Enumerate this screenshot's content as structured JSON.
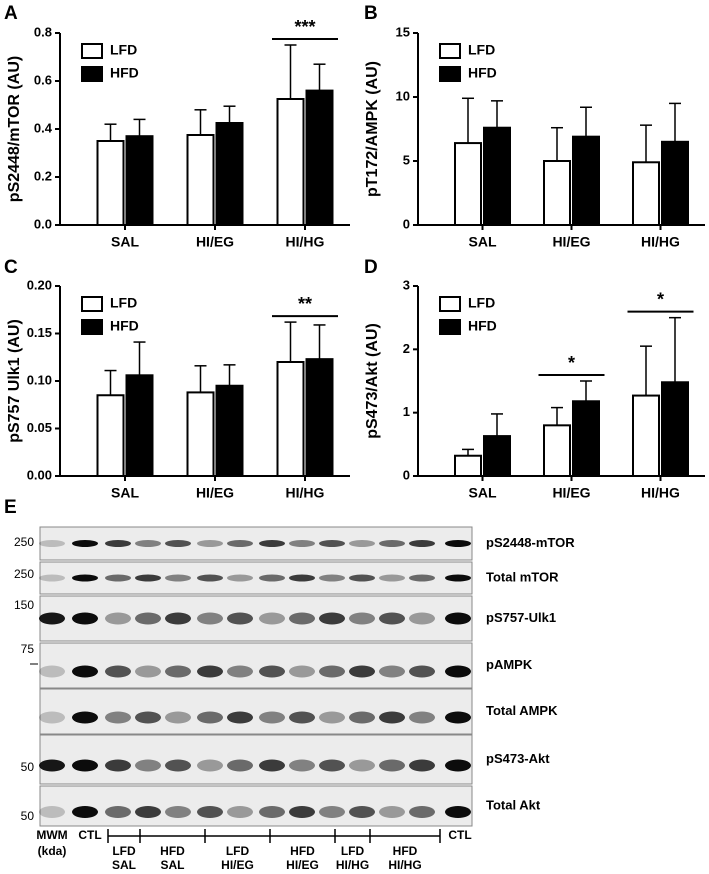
{
  "chart_data": [
    {
      "type": "bar",
      "panel": "A",
      "y_label": "pS2448/mTOR (AU)",
      "categories": [
        "SAL",
        "HI/EG",
        "HI/HG"
      ],
      "series": [
        {
          "name": "LFD",
          "color": "#ffffff",
          "values": [
            0.35,
            0.375,
            0.525
          ],
          "errors": [
            0.07,
            0.105,
            0.225
          ]
        },
        {
          "name": "HFD",
          "color": "#000000",
          "values": [
            0.37,
            0.425,
            0.56
          ],
          "errors": [
            0.07,
            0.07,
            0.11
          ]
        }
      ],
      "ylim": [
        0,
        0.8
      ],
      "yticks": [
        {
          "value": 0,
          "label": "0.0"
        },
        0.2,
        0.4,
        0.6,
        0.8
      ],
      "annotations": [
        {
          "text": "***",
          "category": "HI/HG"
        }
      ]
    },
    {
      "type": "bar",
      "panel": "B",
      "y_label": "pT172/AMPK (AU)",
      "categories": [
        "SAL",
        "HI/EG",
        "HI/HG"
      ],
      "series": [
        {
          "name": "LFD",
          "color": "#ffffff",
          "values": [
            6.4,
            5.0,
            4.9
          ],
          "errors": [
            3.5,
            2.6,
            2.9
          ]
        },
        {
          "name": "HFD",
          "color": "#000000",
          "values": [
            7.6,
            6.9,
            6.5
          ],
          "errors": [
            2.1,
            2.3,
            3.0
          ]
        }
      ],
      "ylim": [
        0,
        15
      ],
      "yticks": [
        0,
        5,
        10,
        15
      ],
      "annotations": []
    },
    {
      "type": "bar",
      "panel": "C",
      "y_label": "pS757 Ulk1 (AU)",
      "categories": [
        "SAL",
        "HI/EG",
        "HI/HG"
      ],
      "series": [
        {
          "name": "LFD",
          "color": "#ffffff",
          "values": [
            0.085,
            0.088,
            0.12
          ],
          "errors": [
            0.026,
            0.028,
            0.042
          ]
        },
        {
          "name": "HFD",
          "color": "#000000",
          "values": [
            0.106,
            0.095,
            0.123
          ],
          "errors": [
            0.035,
            0.022,
            0.036
          ]
        }
      ],
      "ylim": [
        0,
        0.2
      ],
      "yticks": [
        {
          "value": 0,
          "label": "0.00"
        },
        {
          "value": 0.05,
          "label": "0.05"
        },
        {
          "value": 0.1,
          "label": "0.10"
        },
        {
          "value": 0.15,
          "label": "0.15"
        },
        {
          "value": 0.2,
          "label": "0.20"
        }
      ],
      "annotations": [
        {
          "text": "**",
          "category": "HI/HG"
        }
      ]
    },
    {
      "type": "bar",
      "panel": "D",
      "y_label": "pS473/Akt (AU)",
      "categories": [
        "SAL",
        "HI/EG",
        "HI/HG"
      ],
      "series": [
        {
          "name": "LFD",
          "color": "#ffffff",
          "values": [
            0.32,
            0.8,
            1.27
          ],
          "errors": [
            0.1,
            0.28,
            0.78
          ]
        },
        {
          "name": "HFD",
          "color": "#000000",
          "values": [
            0.63,
            1.18,
            1.48
          ],
          "errors": [
            0.35,
            0.32,
            1.02
          ]
        }
      ],
      "ylim": [
        0,
        3
      ],
      "yticks": [
        0,
        1,
        2,
        3
      ],
      "annotations": [
        {
          "text": "*",
          "category": "HI/EG"
        },
        {
          "text": "*",
          "category": "HI/HG"
        }
      ]
    }
  ],
  "blot": {
    "panel": "E",
    "rows": [
      "pS2448-mTOR",
      "Total mTOR",
      "pS757-Ulk1",
      "pAMPK",
      "Total AMPK",
      "pS473-Akt",
      "Total Akt"
    ],
    "markers": [
      "250",
      "250",
      "150",
      "75",
      "50",
      "50"
    ],
    "lanes": [
      "MWM",
      "(kda)",
      "CTL",
      "CTL"
    ],
    "groups": [
      [
        "LFD",
        "SAL"
      ],
      [
        "HFD",
        "SAL"
      ],
      [
        "LFD",
        "HI/EG"
      ],
      [
        "HFD",
        "HI/EG"
      ],
      [
        "LFD",
        "HI/HG"
      ],
      [
        "HFD",
        "HI/HG"
      ]
    ]
  }
}
